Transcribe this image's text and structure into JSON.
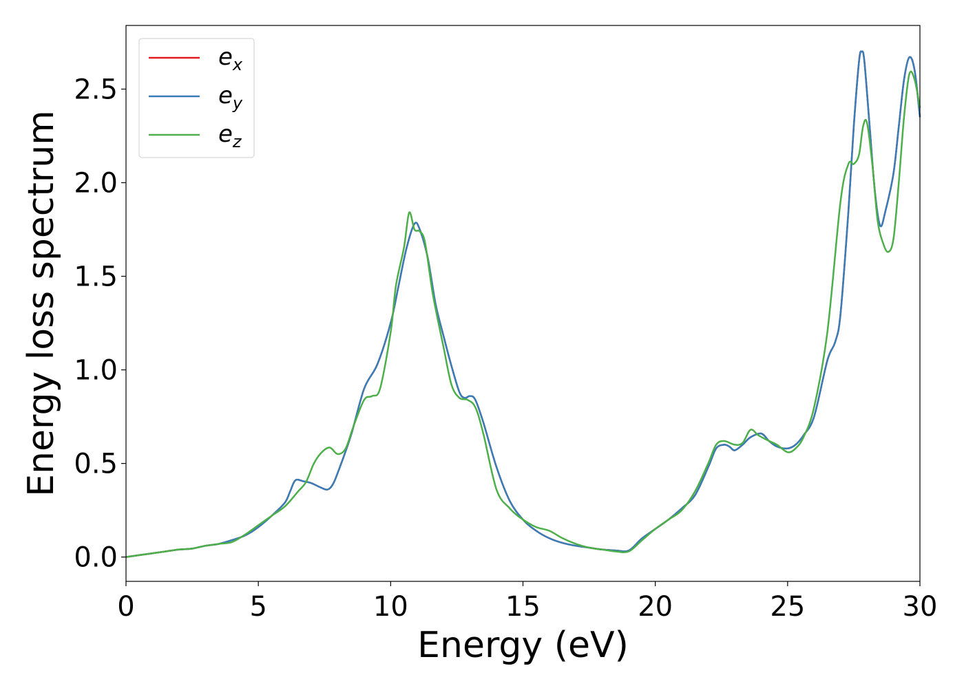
{
  "chart_data": {
    "type": "line",
    "xlabel": "Energy (eV)",
    "ylabel": "Energy loss spectrum",
    "xlim": [
      0,
      30
    ],
    "ylim": [
      -0.13,
      2.84
    ],
    "xticks": [
      0,
      5,
      10,
      15,
      20,
      25,
      30
    ],
    "xtick_labels": [
      "0",
      "5",
      "10",
      "15",
      "20",
      "25",
      "30"
    ],
    "yticks": [
      0.0,
      0.5,
      1.0,
      1.5,
      2.0,
      2.5
    ],
    "ytick_labels": [
      "0.0",
      "0.5",
      "1.0",
      "1.5",
      "2.0",
      "2.5"
    ],
    "grid": false,
    "legend_position": "top-left",
    "series": [
      {
        "name": "e",
        "subscript": "x",
        "color": "#e41a1c",
        "x": [
          0,
          0.5,
          1,
          1.5,
          2,
          2.5,
          3,
          3.5,
          4,
          4.5,
          5,
          5.5,
          6,
          6.2,
          6.4,
          6.7,
          7,
          7.3,
          7.6,
          7.8,
          8,
          8.5,
          9,
          9.5,
          10,
          10.3,
          10.6,
          10.9,
          11.1,
          11.4,
          11.7,
          12,
          12.3,
          12.6,
          12.8,
          13,
          13.2,
          13.5,
          14,
          14.5,
          15,
          15.5,
          16,
          16.5,
          17,
          17.5,
          18,
          18.5,
          19,
          19.5,
          20,
          20.5,
          21,
          21.5,
          22,
          22.3,
          22.6,
          22.8,
          23,
          23.3,
          23.6,
          24,
          24.3,
          24.6,
          25,
          25.3,
          25.6,
          26,
          26.5,
          26.8,
          27,
          27.3,
          27.5,
          27.7,
          27.8,
          27.9,
          28.1,
          28.3,
          28.5,
          28.7,
          29,
          29.2,
          29.4,
          29.6,
          29.8,
          30
        ],
        "y": [
          0.0,
          0.01,
          0.02,
          0.03,
          0.04,
          0.045,
          0.06,
          0.07,
          0.09,
          0.115,
          0.16,
          0.22,
          0.29,
          0.35,
          0.41,
          0.405,
          0.395,
          0.375,
          0.36,
          0.385,
          0.45,
          0.65,
          0.9,
          1.03,
          1.25,
          1.45,
          1.65,
          1.78,
          1.75,
          1.6,
          1.35,
          1.18,
          1.02,
          0.88,
          0.85,
          0.86,
          0.84,
          0.72,
          0.48,
          0.3,
          0.2,
          0.14,
          0.1,
          0.075,
          0.06,
          0.05,
          0.04,
          0.035,
          0.035,
          0.1,
          0.15,
          0.2,
          0.26,
          0.33,
          0.48,
          0.58,
          0.6,
          0.59,
          0.57,
          0.6,
          0.64,
          0.66,
          0.62,
          0.59,
          0.58,
          0.6,
          0.65,
          0.75,
          1.05,
          1.15,
          1.3,
          1.85,
          2.3,
          2.65,
          2.7,
          2.65,
          2.3,
          1.95,
          1.77,
          1.85,
          2.05,
          2.3,
          2.55,
          2.67,
          2.6,
          2.35
        ]
      },
      {
        "name": "e",
        "subscript": "y",
        "color": "#377eb8",
        "x": [
          0,
          0.5,
          1,
          1.5,
          2,
          2.5,
          3,
          3.5,
          4,
          4.5,
          5,
          5.5,
          6,
          6.2,
          6.4,
          6.7,
          7,
          7.3,
          7.6,
          7.8,
          8,
          8.5,
          9,
          9.5,
          10,
          10.3,
          10.6,
          10.9,
          11.1,
          11.4,
          11.7,
          12,
          12.3,
          12.6,
          12.8,
          13,
          13.2,
          13.5,
          14,
          14.5,
          15,
          15.5,
          16,
          16.5,
          17,
          17.5,
          18,
          18.5,
          19,
          19.5,
          20,
          20.5,
          21,
          21.5,
          22,
          22.3,
          22.6,
          22.8,
          23,
          23.3,
          23.6,
          24,
          24.3,
          24.6,
          25,
          25.3,
          25.6,
          26,
          26.5,
          26.8,
          27,
          27.3,
          27.5,
          27.7,
          27.8,
          27.9,
          28.1,
          28.3,
          28.5,
          28.7,
          29,
          29.2,
          29.4,
          29.6,
          29.8,
          30
        ],
        "y": [
          0.0,
          0.01,
          0.02,
          0.03,
          0.04,
          0.045,
          0.06,
          0.07,
          0.09,
          0.115,
          0.16,
          0.22,
          0.29,
          0.35,
          0.41,
          0.405,
          0.395,
          0.375,
          0.36,
          0.385,
          0.45,
          0.65,
          0.9,
          1.03,
          1.25,
          1.45,
          1.65,
          1.78,
          1.75,
          1.6,
          1.35,
          1.18,
          1.02,
          0.88,
          0.85,
          0.86,
          0.84,
          0.72,
          0.48,
          0.3,
          0.2,
          0.14,
          0.1,
          0.075,
          0.06,
          0.05,
          0.04,
          0.035,
          0.035,
          0.1,
          0.15,
          0.2,
          0.26,
          0.33,
          0.48,
          0.58,
          0.6,
          0.59,
          0.57,
          0.6,
          0.64,
          0.66,
          0.62,
          0.59,
          0.58,
          0.6,
          0.65,
          0.75,
          1.05,
          1.15,
          1.3,
          1.85,
          2.3,
          2.65,
          2.7,
          2.65,
          2.3,
          1.95,
          1.77,
          1.85,
          2.05,
          2.3,
          2.55,
          2.67,
          2.6,
          2.35
        ]
      },
      {
        "name": "e",
        "subscript": "z",
        "color": "#4daf4a",
        "x": [
          0,
          0.5,
          1,
          1.5,
          2,
          2.5,
          3,
          3.5,
          4,
          4.5,
          5,
          5.5,
          6,
          6.5,
          6.8,
          7.1,
          7.4,
          7.7,
          8,
          8.3,
          8.6,
          9,
          9.3,
          9.6,
          10,
          10.2,
          10.5,
          10.7,
          10.9,
          11.1,
          11.3,
          11.6,
          12,
          12.3,
          12.6,
          12.9,
          13.2,
          13.5,
          14,
          14.5,
          15,
          15.5,
          16,
          16.5,
          17,
          17.5,
          18,
          18.5,
          19,
          19.5,
          20,
          20.5,
          21,
          21.5,
          22,
          22.3,
          22.6,
          23,
          23.3,
          23.6,
          23.9,
          24.3,
          24.6,
          25,
          25.3,
          25.6,
          26,
          26.5,
          27,
          27.3,
          27.5,
          27.7,
          27.85,
          28,
          28.2,
          28.4,
          28.6,
          28.8,
          29,
          29.2,
          29.4,
          29.6,
          29.8,
          30
        ],
        "y": [
          0.0,
          0.01,
          0.02,
          0.03,
          0.04,
          0.045,
          0.06,
          0.07,
          0.08,
          0.12,
          0.17,
          0.22,
          0.27,
          0.35,
          0.4,
          0.5,
          0.56,
          0.585,
          0.55,
          0.58,
          0.7,
          0.84,
          0.86,
          0.9,
          1.2,
          1.45,
          1.65,
          1.84,
          1.75,
          1.74,
          1.68,
          1.4,
          1.12,
          0.92,
          0.85,
          0.84,
          0.8,
          0.66,
          0.36,
          0.26,
          0.2,
          0.16,
          0.14,
          0.1,
          0.07,
          0.05,
          0.04,
          0.03,
          0.03,
          0.09,
          0.15,
          0.2,
          0.25,
          0.35,
          0.5,
          0.6,
          0.62,
          0.6,
          0.61,
          0.68,
          0.65,
          0.62,
          0.6,
          0.56,
          0.58,
          0.64,
          0.8,
          1.2,
          1.9,
          2.1,
          2.1,
          2.15,
          2.3,
          2.32,
          2.1,
          1.8,
          1.68,
          1.63,
          1.7,
          2.0,
          2.35,
          2.58,
          2.55,
          2.4
        ]
      }
    ]
  }
}
